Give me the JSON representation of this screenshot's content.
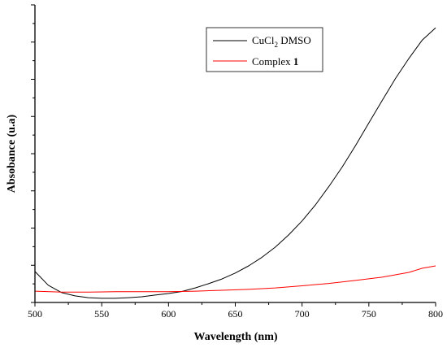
{
  "chart_data": {
    "type": "line",
    "xlabel": "Wavelength (nm)",
    "ylabel": "Absobance (u.a)",
    "xlim": [
      500,
      800
    ],
    "xticks": [
      500,
      550,
      600,
      650,
      700,
      750,
      800
    ],
    "ylim": [
      0,
      1
    ],
    "y_tick_count": 16,
    "legend": {
      "placement": "top-right",
      "entries": [
        {
          "base": "CuCl",
          "sub": "2",
          "rest": " DMSO"
        },
        {
          "base": "Complex ",
          "bold": "1"
        }
      ]
    },
    "series": [
      {
        "name": "CuCl2 DMSO",
        "color": "#000000",
        "x": [
          500,
          510,
          520,
          530,
          540,
          550,
          560,
          570,
          580,
          590,
          600,
          610,
          620,
          630,
          640,
          650,
          660,
          670,
          680,
          690,
          700,
          710,
          720,
          730,
          740,
          750,
          760,
          770,
          780,
          790,
          800
        ],
        "y": [
          0.104,
          0.058,
          0.033,
          0.022,
          0.016,
          0.014,
          0.014,
          0.016,
          0.019,
          0.025,
          0.03,
          0.037,
          0.049,
          0.063,
          0.079,
          0.099,
          0.123,
          0.152,
          0.186,
          0.227,
          0.274,
          0.328,
          0.389,
          0.455,
          0.527,
          0.603,
          0.679,
          0.753,
          0.82,
          0.882,
          0.923
        ]
      },
      {
        "name": "Complex 1",
        "color": "#ff0000",
        "x": [
          500,
          520,
          540,
          560,
          580,
          600,
          620,
          640,
          660,
          680,
          700,
          720,
          740,
          760,
          780,
          790,
          800
        ],
        "y": [
          0.038,
          0.035,
          0.035,
          0.036,
          0.036,
          0.036,
          0.038,
          0.041,
          0.044,
          0.049,
          0.056,
          0.064,
          0.074,
          0.085,
          0.101,
          0.115,
          0.123
        ]
      }
    ]
  }
}
